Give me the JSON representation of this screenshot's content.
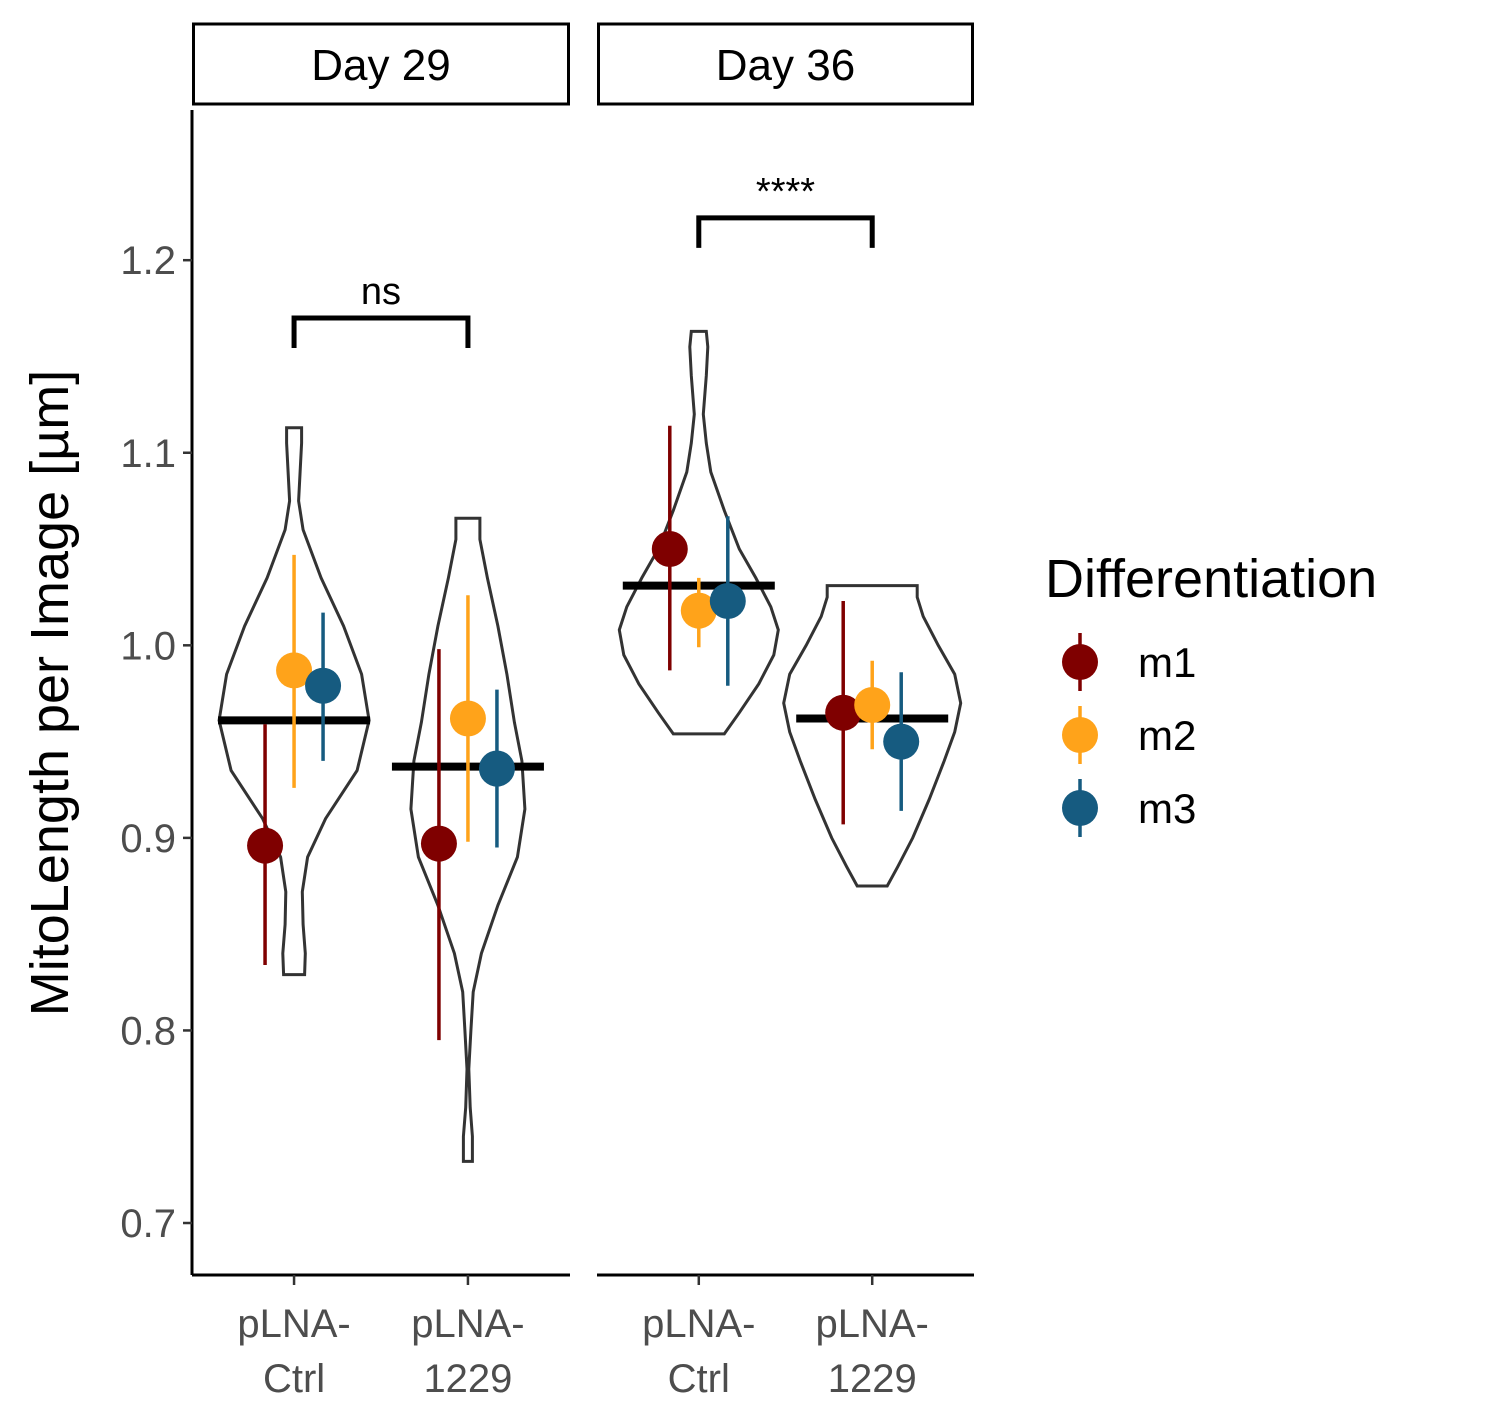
{
  "chart_data": {
    "type": "violin",
    "ylabel": "MitoLength per Image [µm]",
    "ylim": [
      0.673,
      1.278
    ],
    "yticks": [
      "0.7",
      "0.8",
      "0.9",
      "1.0",
      "1.1",
      "1.2"
    ],
    "categories": [
      {
        "key": "ctrl",
        "lines": [
          "pLNA-",
          "Ctrl"
        ]
      },
      {
        "key": "1229",
        "lines": [
          "pLNA-",
          "1229"
        ]
      }
    ],
    "legend": {
      "title": "Differentiation",
      "position": "right",
      "items": [
        {
          "label": "m1",
          "color": "#7f0000"
        },
        {
          "label": "m2",
          "color": "#ffa31a"
        },
        {
          "label": "m3",
          "color": "#165b80"
        }
      ]
    },
    "panels": [
      {
        "strip": "Day 29",
        "groups": [
          {
            "category": "ctrl",
            "median": 0.961,
            "violin": {
              "ymin": 0.829,
              "ymax": 1.113,
              "profile": [
                [
                  0.829,
                  0.07
                ],
                [
                  0.84,
                  0.075
                ],
                [
                  0.855,
                  0.06
                ],
                [
                  0.872,
                  0.055
                ],
                [
                  0.89,
                  0.09
                ],
                [
                  0.91,
                  0.21
                ],
                [
                  0.935,
                  0.42
                ],
                [
                  0.961,
                  0.5
                ],
                [
                  0.985,
                  0.45
                ],
                [
                  1.01,
                  0.33
                ],
                [
                  1.035,
                  0.18
                ],
                [
                  1.06,
                  0.06
                ],
                [
                  1.075,
                  0.03
                ],
                [
                  1.09,
                  0.04
                ],
                [
                  1.105,
                  0.05
                ],
                [
                  1.113,
                  0.05
                ]
              ]
            },
            "points": [
              {
                "series": "m1",
                "y": 0.896,
                "lo": 0.834,
                "hi": 0.959
              },
              {
                "series": "m2",
                "y": 0.987,
                "lo": 0.926,
                "hi": 1.047
              },
              {
                "series": "m3",
                "y": 0.979,
                "lo": 0.94,
                "hi": 1.017
              }
            ]
          },
          {
            "category": "1229",
            "median": 0.937,
            "violin": {
              "ymin": 0.732,
              "ymax": 1.066,
              "profile": [
                [
                  0.732,
                  0.03
                ],
                [
                  0.745,
                  0.03
                ],
                [
                  0.76,
                  0.015
                ],
                [
                  0.78,
                  0.006
                ],
                [
                  0.8,
                  0.02
                ],
                [
                  0.82,
                  0.035
                ],
                [
                  0.84,
                  0.09
                ],
                [
                  0.865,
                  0.2
                ],
                [
                  0.89,
                  0.33
                ],
                [
                  0.915,
                  0.38
                ],
                [
                  0.94,
                  0.36
                ],
                [
                  0.96,
                  0.31
                ],
                [
                  0.985,
                  0.26
                ],
                [
                  1.01,
                  0.2
                ],
                [
                  1.035,
                  0.13
                ],
                [
                  1.055,
                  0.08
                ],
                [
                  1.066,
                  0.08
                ]
              ]
            },
            "points": [
              {
                "series": "m1",
                "y": 0.897,
                "lo": 0.795,
                "hi": 0.998
              },
              {
                "series": "m2",
                "y": 0.962,
                "lo": 0.898,
                "hi": 1.026
              },
              {
                "series": "m3",
                "y": 0.936,
                "lo": 0.895,
                "hi": 0.977
              }
            ]
          }
        ],
        "comparison": {
          "label": "ns",
          "y": 1.17
        }
      },
      {
        "strip": "Day 36",
        "groups": [
          {
            "category": "ctrl",
            "median": 1.031,
            "violin": {
              "ymin": 0.954,
              "ymax": 1.163,
              "profile": [
                [
                  0.954,
                  0.17
                ],
                [
                  0.965,
                  0.27
                ],
                [
                  0.98,
                  0.4
                ],
                [
                  0.995,
                  0.5
                ],
                [
                  1.008,
                  0.53
                ],
                [
                  1.02,
                  0.48
                ],
                [
                  1.035,
                  0.38
                ],
                [
                  1.05,
                  0.27
                ],
                [
                  1.07,
                  0.17
                ],
                [
                  1.09,
                  0.08
                ],
                [
                  1.105,
                  0.05
                ],
                [
                  1.12,
                  0.03
                ],
                [
                  1.14,
                  0.05
                ],
                [
                  1.155,
                  0.06
                ],
                [
                  1.163,
                  0.05
                ]
              ]
            },
            "points": [
              {
                "series": "m1",
                "y": 1.05,
                "lo": 0.987,
                "hi": 1.114
              },
              {
                "series": "m2",
                "y": 1.018,
                "lo": 0.999,
                "hi": 1.035
              },
              {
                "series": "m3",
                "y": 1.023,
                "lo": 0.979,
                "hi": 1.067
              }
            ]
          },
          {
            "category": "1229",
            "median": 0.962,
            "violin": {
              "ymin": 0.875,
              "ymax": 1.031,
              "profile": [
                [
                  0.875,
                  0.1
                ],
                [
                  0.885,
                  0.17
                ],
                [
                  0.9,
                  0.27
                ],
                [
                  0.92,
                  0.38
                ],
                [
                  0.94,
                  0.48
                ],
                [
                  0.955,
                  0.55
                ],
                [
                  0.97,
                  0.59
                ],
                [
                  0.985,
                  0.55
                ],
                [
                  1.0,
                  0.44
                ],
                [
                  1.015,
                  0.34
                ],
                [
                  1.025,
                  0.3
                ],
                [
                  1.031,
                  0.3
                ]
              ]
            },
            "points": [
              {
                "series": "m1",
                "y": 0.965,
                "lo": 0.907,
                "hi": 1.023
              },
              {
                "series": "m2",
                "y": 0.969,
                "lo": 0.946,
                "hi": 0.992
              },
              {
                "series": "m3",
                "y": 0.95,
                "lo": 0.914,
                "hi": 0.986
              }
            ]
          }
        ],
        "comparison": {
          "label": "****",
          "y": 1.222
        }
      }
    ]
  }
}
